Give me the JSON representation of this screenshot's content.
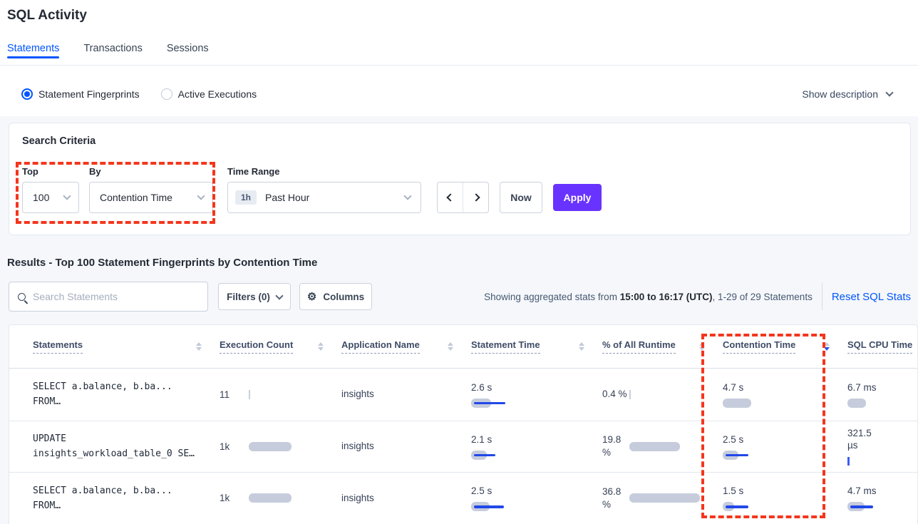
{
  "page": {
    "title": "SQL Activity"
  },
  "tabs": [
    {
      "label": "Statements",
      "active": true
    },
    {
      "label": "Transactions",
      "active": false
    },
    {
      "label": "Sessions",
      "active": false
    }
  ],
  "view_toggle": {
    "options": [
      {
        "label": "Statement Fingerprints",
        "selected": true
      },
      {
        "label": "Active Executions",
        "selected": false
      }
    ],
    "show_description_label": "Show description"
  },
  "search_criteria": {
    "title": "Search Criteria",
    "top": {
      "label": "Top",
      "value": "100"
    },
    "by": {
      "label": "By",
      "value": "Contention Time"
    },
    "time_range": {
      "label": "Time Range",
      "badge": "1h",
      "value": "Past Hour"
    },
    "now_label": "Now",
    "apply_label": "Apply"
  },
  "results": {
    "heading": "Results - Top 100 Statement Fingerprints by Contention Time",
    "search_placeholder": "Search Statements",
    "filters_label": "Filters (0)",
    "columns_label": "Columns",
    "stats_prefix": "Showing aggregated stats from ",
    "stats_bold": "15:00 to 16:17 (UTC)",
    "stats_suffix": ", 1-29 of 29 Statements",
    "reset_label": "Reset SQL Stats"
  },
  "table": {
    "headers": [
      {
        "label": "Statements",
        "sort": null
      },
      {
        "label": "Execution Count",
        "sort": null
      },
      {
        "label": "Application Name",
        "sort": null
      },
      {
        "label": "Statement Time",
        "sort": null
      },
      {
        "label": "% of All Runtime",
        "sort": null
      },
      {
        "label": "Contention Time",
        "sort": "desc"
      },
      {
        "label": "SQL CPU Time",
        "sort": null
      }
    ],
    "rows": [
      {
        "statement": [
          "SELECT a.balance, b.ba...",
          "FROM…"
        ],
        "execution_count": {
          "text": "11",
          "bar": 1
        },
        "application_name": "insights",
        "statement_time": {
          "text": "2.6 s",
          "bar": 28,
          "line": 44
        },
        "runtime": {
          "text": "0.4 %",
          "bar": 1
        },
        "contention_time": {
          "text": "4.7 s",
          "bar": 40,
          "line": 0
        },
        "sql_cpu_time": {
          "text": "6.7 ms",
          "bar": 26,
          "line": 0
        }
      },
      {
        "statement": [
          "UPDATE",
          "insights_workload_table_0 SE…"
        ],
        "execution_count": {
          "text": "1k",
          "bar": 60
        },
        "application_name": "insights",
        "statement_time": {
          "text": "2.1 s",
          "bar": 22,
          "line": 30
        },
        "runtime": {
          "text": "19.8 %",
          "bar": 71
        },
        "contention_time": {
          "text": "2.5 s",
          "bar": 22,
          "line": 32
        },
        "sql_cpu_time": {
          "text": "321.5 µs",
          "bar": 0,
          "line": 0,
          "sliver": "blue"
        }
      },
      {
        "statement": [
          "SELECT a.balance, b.ba...",
          "FROM…"
        ],
        "execution_count": {
          "text": "1k",
          "bar": 60
        },
        "application_name": "insights",
        "statement_time": {
          "text": "2.5 s",
          "bar": 26,
          "line": 42
        },
        "runtime": {
          "text": "36.8 %",
          "bar": 99
        },
        "contention_time": {
          "text": "1.5 s",
          "bar": 16,
          "line": 32
        },
        "sql_cpu_time": {
          "text": "4.7 ms",
          "bar": 24,
          "line": 32
        }
      }
    ]
  },
  "colors": {
    "accent_blue": "#0055FF",
    "apply_purple": "#6933FF",
    "bar_gray": "#C6CCDC",
    "bar_blue": "#2148E8",
    "annotation_red": "#F4351C"
  }
}
